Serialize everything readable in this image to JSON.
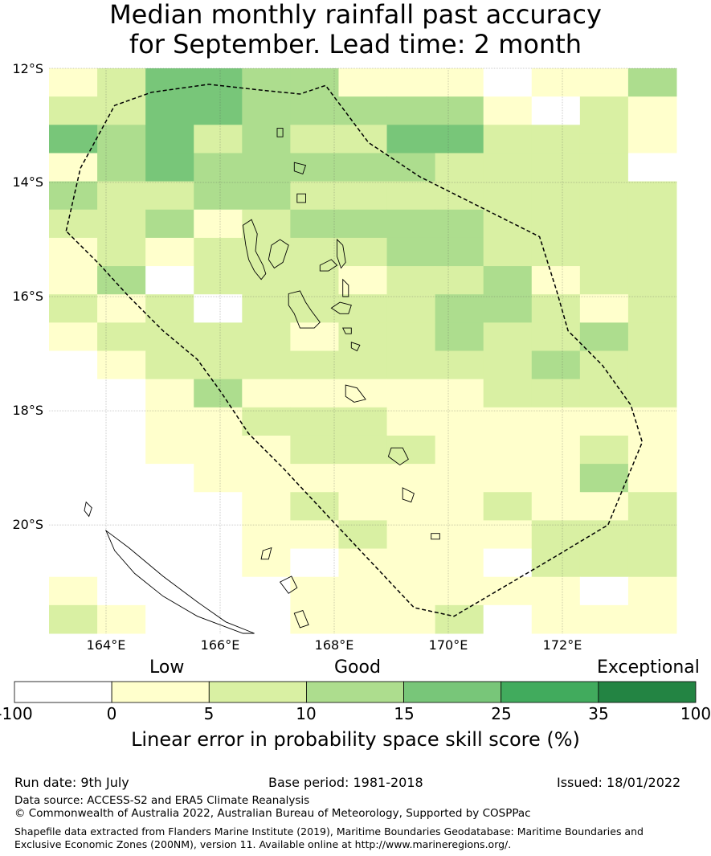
{
  "title": {
    "line1": "Median monthly rainfall past accuracy",
    "line2": "for September. Lead time: 2 month"
  },
  "map": {
    "lat_labels": [
      "12°S",
      "14°S",
      "16°S",
      "18°S",
      "20°S"
    ],
    "lon_labels": [
      "164°E",
      "166°E",
      "168°E",
      "170°E",
      "172°E"
    ],
    "extent": {
      "lon_min": 163.0,
      "lon_max": 174.0,
      "lat_top": -12.0,
      "lat_bottom": -21.9
    },
    "grid_cell_deg": 0.83,
    "cell_categories_note": "0=white(-100..0) 1=pale yellow(0..5) 2=light green(5..10) 3=green(10..15) 4=mid green(15..25)",
    "skill_grid": [
      [
        1,
        2,
        4,
        4,
        3,
        3,
        1,
        1,
        1,
        0,
        1,
        1,
        3
      ],
      [
        2,
        2,
        4,
        4,
        3,
        3,
        3,
        3,
        3,
        1,
        0,
        2,
        1
      ],
      [
        4,
        3,
        4,
        2,
        3,
        2,
        2,
        4,
        4,
        2,
        2,
        2,
        1
      ],
      [
        1,
        3,
        4,
        3,
        3,
        3,
        3,
        3,
        2,
        2,
        2,
        2,
        0
      ],
      [
        3,
        2,
        2,
        3,
        3,
        2,
        2,
        2,
        2,
        2,
        2,
        2,
        2
      ],
      [
        2,
        2,
        3,
        1,
        2,
        3,
        3,
        3,
        3,
        2,
        2,
        2,
        2
      ],
      [
        1,
        2,
        1,
        2,
        2,
        2,
        2,
        3,
        3,
        2,
        2,
        2,
        2
      ],
      [
        1,
        3,
        0,
        2,
        2,
        2,
        1,
        2,
        2,
        3,
        1,
        2,
        2
      ],
      [
        2,
        1,
        2,
        0,
        2,
        2,
        2,
        2,
        3,
        3,
        2,
        1,
        2
      ],
      [
        1,
        2,
        2,
        2,
        2,
        1,
        2,
        2,
        3,
        2,
        2,
        3,
        2
      ],
      [
        0,
        1,
        2,
        2,
        2,
        2,
        2,
        2,
        2,
        2,
        3,
        2,
        2
      ],
      [
        0,
        0,
        1,
        3,
        1,
        1,
        1,
        1,
        1,
        2,
        2,
        2,
        2
      ],
      [
        0,
        0,
        1,
        1,
        2,
        2,
        2,
        1,
        1,
        1,
        1,
        1,
        1
      ],
      [
        0,
        0,
        1,
        1,
        1,
        2,
        2,
        2,
        1,
        1,
        1,
        2,
        1
      ],
      [
        0,
        0,
        0,
        1,
        1,
        1,
        1,
        1,
        1,
        1,
        1,
        3,
        1
      ],
      [
        0,
        0,
        0,
        0,
        1,
        2,
        1,
        1,
        1,
        2,
        1,
        1,
        2
      ],
      [
        0,
        0,
        0,
        0,
        1,
        1,
        2,
        1,
        1,
        1,
        2,
        2,
        2
      ],
      [
        0,
        0,
        0,
        0,
        1,
        0,
        1,
        1,
        1,
        0,
        2,
        2,
        2
      ],
      [
        1,
        0,
        0,
        0,
        0,
        1,
        1,
        1,
        1,
        1,
        1,
        0,
        1
      ],
      [
        2,
        1,
        0,
        0,
        0,
        1,
        1,
        1,
        2,
        0,
        1,
        1,
        1
      ]
    ],
    "eez_boundary": [
      [
        163.3,
        -14.85
      ],
      [
        163.55,
        -13.75
      ],
      [
        164.15,
        -12.65
      ],
      [
        164.8,
        -12.42
      ],
      [
        165.8,
        -12.28
      ],
      [
        166.7,
        -12.38
      ],
      [
        167.4,
        -12.45
      ],
      [
        167.85,
        -12.3
      ],
      [
        168.6,
        -13.3
      ],
      [
        169.5,
        -13.9
      ],
      [
        170.5,
        -14.4
      ],
      [
        171.6,
        -14.95
      ],
      [
        171.9,
        -15.9
      ],
      [
        172.1,
        -16.6
      ],
      [
        172.7,
        -17.2
      ],
      [
        173.2,
        -17.9
      ],
      [
        173.4,
        -18.55
      ],
      [
        172.8,
        -20.0
      ],
      [
        171.8,
        -20.6
      ],
      [
        170.1,
        -21.6
      ],
      [
        169.4,
        -21.45
      ],
      [
        168.6,
        -20.6
      ],
      [
        167.8,
        -19.75
      ],
      [
        167.1,
        -19.0
      ],
      [
        166.5,
        -18.4
      ],
      [
        166.0,
        -17.65
      ],
      [
        165.6,
        -17.1
      ],
      [
        165.0,
        -16.6
      ],
      [
        164.4,
        -16.0
      ],
      [
        163.9,
        -15.45
      ],
      [
        163.3,
        -14.85
      ]
    ],
    "islands": [
      [
        [
          166.4,
          -14.75
        ],
        [
          166.55,
          -14.65
        ],
        [
          166.65,
          -14.9
        ],
        [
          166.62,
          -15.2
        ],
        [
          166.75,
          -15.45
        ],
        [
          166.8,
          -15.6
        ],
        [
          166.72,
          -15.7
        ],
        [
          166.6,
          -15.55
        ],
        [
          166.5,
          -15.35
        ],
        [
          166.45,
          -15.1
        ]
      ],
      [
        [
          166.9,
          -15.1
        ],
        [
          167.05,
          -15.0
        ],
        [
          167.2,
          -15.1
        ],
        [
          167.1,
          -15.4
        ],
        [
          166.95,
          -15.5
        ],
        [
          166.85,
          -15.35
        ]
      ],
      [
        [
          167.75,
          -15.45
        ],
        [
          167.95,
          -15.35
        ],
        [
          168.05,
          -15.45
        ],
        [
          167.9,
          -15.55
        ],
        [
          167.75,
          -15.55
        ]
      ],
      [
        [
          168.05,
          -15.0
        ],
        [
          168.15,
          -15.1
        ],
        [
          168.2,
          -15.4
        ],
        [
          168.12,
          -15.5
        ],
        [
          168.05,
          -15.3
        ]
      ],
      [
        [
          168.15,
          -15.7
        ],
        [
          168.25,
          -15.8
        ],
        [
          168.25,
          -16.0
        ],
        [
          168.15,
          -16.0
        ]
      ],
      [
        [
          167.2,
          -15.95
        ],
        [
          167.4,
          -15.9
        ],
        [
          167.5,
          -16.1
        ],
        [
          167.6,
          -16.25
        ],
        [
          167.75,
          -16.45
        ],
        [
          167.65,
          -16.55
        ],
        [
          167.4,
          -16.55
        ],
        [
          167.3,
          -16.3
        ],
        [
          167.2,
          -16.15
        ]
      ],
      [
        [
          168.1,
          -16.1
        ],
        [
          168.3,
          -16.15
        ],
        [
          168.25,
          -16.3
        ],
        [
          168.1,
          -16.3
        ],
        [
          167.95,
          -16.2
        ]
      ],
      [
        [
          168.15,
          -16.55
        ],
        [
          168.3,
          -16.55
        ],
        [
          168.3,
          -16.65
        ],
        [
          168.2,
          -16.65
        ]
      ],
      [
        [
          168.3,
          -16.8
        ],
        [
          168.45,
          -16.85
        ],
        [
          168.4,
          -16.95
        ],
        [
          168.3,
          -16.9
        ]
      ],
      [
        [
          168.2,
          -17.55
        ],
        [
          168.4,
          -17.6
        ],
        [
          168.55,
          -17.8
        ],
        [
          168.35,
          -17.85
        ],
        [
          168.2,
          -17.75
        ]
      ],
      [
        [
          169.0,
          -18.65
        ],
        [
          169.2,
          -18.65
        ],
        [
          169.3,
          -18.85
        ],
        [
          169.15,
          -18.95
        ],
        [
          168.95,
          -18.8
        ]
      ],
      [
        [
          169.2,
          -19.35
        ],
        [
          169.4,
          -19.45
        ],
        [
          169.35,
          -19.6
        ],
        [
          169.2,
          -19.55
        ]
      ],
      [
        [
          169.7,
          -20.15
        ],
        [
          169.85,
          -20.15
        ],
        [
          169.85,
          -20.25
        ],
        [
          169.7,
          -20.25
        ]
      ],
      [
        [
          167.0,
          -13.05
        ],
        [
          167.1,
          -13.05
        ],
        [
          167.1,
          -13.2
        ],
        [
          167.0,
          -13.2
        ]
      ],
      [
        [
          167.3,
          -13.65
        ],
        [
          167.5,
          -13.7
        ],
        [
          167.45,
          -13.85
        ],
        [
          167.3,
          -13.8
        ]
      ],
      [
        [
          167.35,
          -14.2
        ],
        [
          167.5,
          -14.2
        ],
        [
          167.5,
          -14.35
        ],
        [
          167.35,
          -14.35
        ]
      ],
      [
        [
          167.3,
          -21.55
        ],
        [
          167.45,
          -21.5
        ],
        [
          167.55,
          -21.75
        ],
        [
          167.4,
          -21.8
        ]
      ],
      [
        [
          167.05,
          -21.0
        ],
        [
          167.25,
          -20.9
        ],
        [
          167.35,
          -21.1
        ],
        [
          167.2,
          -21.2
        ]
      ],
      [
        [
          166.75,
          -20.45
        ],
        [
          166.9,
          -20.4
        ],
        [
          166.85,
          -20.6
        ],
        [
          166.72,
          -20.6
        ]
      ],
      [
        [
          164.0,
          -20.1
        ],
        [
          164.4,
          -20.4
        ],
        [
          165.0,
          -20.9
        ],
        [
          165.6,
          -21.35
        ],
        [
          166.1,
          -21.7
        ],
        [
          166.6,
          -21.9
        ],
        [
          166.4,
          -21.9
        ],
        [
          165.6,
          -21.6
        ],
        [
          165.0,
          -21.25
        ],
        [
          164.5,
          -20.85
        ],
        [
          164.15,
          -20.45
        ]
      ],
      [
        [
          163.65,
          -19.6
        ],
        [
          163.75,
          -19.7
        ],
        [
          163.7,
          -19.85
        ],
        [
          163.62,
          -19.75
        ]
      ]
    ]
  },
  "colorbar": {
    "categories": [
      "Low",
      "Good",
      "Exceptional"
    ],
    "ticks": [
      "-100",
      "0",
      "5",
      "10",
      "15",
      "25",
      "35",
      "100"
    ],
    "colors": [
      "#ffffff",
      "#ffffcc",
      "#d9f0a3",
      "#addd8e",
      "#78c679",
      "#41ab5d",
      "#238443"
    ],
    "label": "Linear error in probability space skill score (%)"
  },
  "footer": {
    "run_date": "Run date: 9th July",
    "base_period": "Base period: 1981-2018",
    "issued": "Issued: 18/01/2022",
    "data_source": "Data source: ACCESS-S2 and ERA5 Climate Reanalysis",
    "copyright": "© Commonwealth of Australia 2022, Australian Bureau of Meteorology, Supported by COSPPac",
    "shapefile": "Shapefile data extracted from Flanders Marine Institute (2019), Maritime Boundaries Geodatabase: Maritime Boundaries and Exclusive Economic Zones (200NM), version 11. Available online at http://www.marineregions.org/."
  }
}
